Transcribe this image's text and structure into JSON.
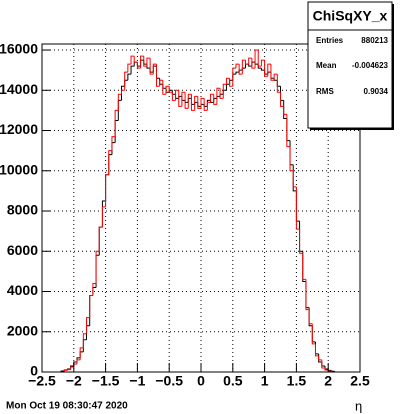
{
  "chart_data": {
    "type": "histogram",
    "title": "ChiSqXY_x",
    "stats": {
      "Entries": 880213,
      "Mean": -0.004623,
      "RMS": 0.9034
    },
    "footer": "Mon Oct 19 08:30:47 2020",
    "x_label": "η",
    "bins": [
      -2.5,
      -2.45,
      -2.4,
      -2.35,
      -2.3,
      -2.25,
      -2.2,
      -2.15,
      -2.1,
      -2.05,
      -2,
      -1.95,
      -1.9,
      -1.85,
      -1.8,
      -1.75,
      -1.7,
      -1.65,
      -1.6,
      -1.55,
      -1.5,
      -1.45,
      -1.4,
      -1.35,
      -1.3,
      -1.25,
      -1.2,
      -1.15,
      -1.1,
      -1.05,
      -1,
      -0.95,
      -0.9,
      -0.85,
      -0.8,
      -0.75,
      -0.7,
      -0.65,
      -0.6,
      -0.55,
      -0.5,
      -0.45,
      -0.4,
      -0.35,
      -0.3,
      -0.25,
      -0.2,
      -0.15,
      -0.1,
      -0.05,
      0,
      0.05,
      0.1,
      0.15,
      0.2,
      0.25,
      0.3,
      0.35,
      0.4,
      0.45,
      0.5,
      0.55,
      0.6,
      0.65,
      0.7,
      0.75,
      0.8,
      0.85,
      0.9,
      0.95,
      1,
      1.05,
      1.1,
      1.15,
      1.2,
      1.25,
      1.3,
      1.35,
      1.4,
      1.45,
      1.5,
      1.55,
      1.6,
      1.65,
      1.7,
      1.75,
      1.8,
      1.85,
      1.9,
      1.95,
      2,
      2.05,
      2.1,
      2.15,
      2.2,
      2.25,
      2.3,
      2.35,
      2.4,
      2.45,
      2.5
    ],
    "series": [
      {
        "color": "#000000",
        "values": [
          0,
          0,
          0,
          0,
          0,
          0,
          50,
          100,
          150,
          300,
          500,
          700,
          1000,
          1600,
          2300,
          3800,
          4200,
          5800,
          7200,
          8500,
          9800,
          10800,
          11400,
          12500,
          13500,
          14200,
          14500,
          14800,
          15200,
          15400,
          15200,
          15500,
          15300,
          15100,
          14900,
          15200,
          14600,
          14300,
          14100,
          13900,
          14000,
          13800,
          13600,
          13700,
          13500,
          13400,
          13600,
          13300,
          13400,
          13200,
          13300,
          13200,
          13500,
          13400,
          13600,
          13700,
          13800,
          14000,
          14300,
          14500,
          14800,
          14900,
          15000,
          15100,
          15300,
          15200,
          15400,
          15300,
          15100,
          15000,
          14800,
          14900,
          14600,
          14500,
          14200,
          13500,
          12600,
          11500,
          10300,
          9000,
          7500,
          6000,
          4500,
          3200,
          2300,
          1500,
          900,
          500,
          300,
          150,
          80,
          40,
          0,
          0,
          0,
          0,
          0,
          0,
          0,
          0
        ]
      },
      {
        "color": "#ff0000",
        "values": [
          0,
          0,
          0,
          0,
          0,
          0,
          0,
          80,
          120,
          250,
          400,
          600,
          1200,
          1900,
          2700,
          3800,
          4400,
          6000,
          7200,
          8200,
          9800,
          11000,
          11700,
          13000,
          13800,
          14000,
          14900,
          15300,
          15700,
          15400,
          15100,
          15700,
          15200,
          15600,
          14800,
          15300,
          14200,
          14500,
          13800,
          14200,
          13900,
          13500,
          14000,
          13200,
          13900,
          13100,
          13800,
          13000,
          13700,
          13100,
          13600,
          13000,
          13400,
          13800,
          13300,
          14100,
          13600,
          14300,
          14600,
          14200,
          15100,
          15300,
          14800,
          15500,
          15300,
          15600,
          15100,
          16000,
          15200,
          15500,
          14700,
          15300,
          14500,
          14800,
          13900,
          13200,
          12800,
          11200,
          10000,
          9200,
          7100,
          5900,
          4600,
          3100,
          2400,
          1400,
          800,
          600,
          200,
          100,
          50,
          0,
          0,
          0,
          0,
          0,
          0,
          0,
          0,
          0
        ]
      }
    ],
    "xlim": [
      -2.5,
      2.5
    ],
    "xticks": [
      {
        "value": -2.5,
        "label": "−2.5"
      },
      {
        "value": -2,
        "label": "−2"
      },
      {
        "value": -1.5,
        "label": "−1.5"
      },
      {
        "value": -1,
        "label": "−1"
      },
      {
        "value": -0.5,
        "label": "−0.5"
      },
      0,
      0.5,
      1,
      1.5,
      2,
      2.5
    ],
    "ylim": [
      0,
      16300
    ],
    "yticks": [
      0,
      2000,
      4000,
      6000,
      8000,
      10000,
      12000,
      14000,
      16000
    ],
    "grid": true
  }
}
